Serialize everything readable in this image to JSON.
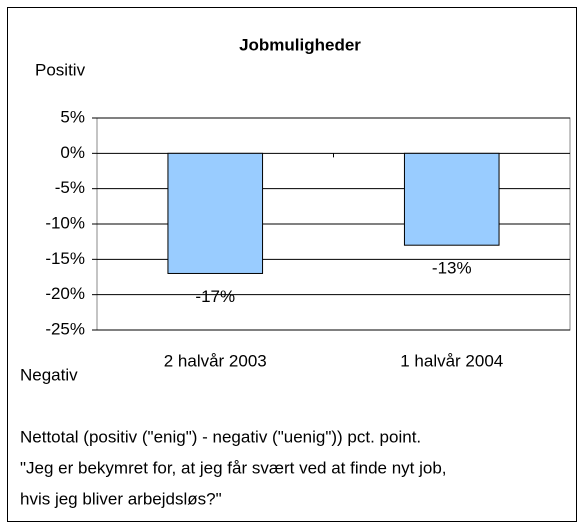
{
  "chart_data": {
    "type": "bar",
    "title": "Jobmuligheder",
    "top_label": "Positiv",
    "bottom_label": "Negativ",
    "categories": [
      "2 halvår 2003",
      "1 halvår 2004"
    ],
    "values": [
      -17,
      -13
    ],
    "value_labels": [
      "-17%",
      "-13%"
    ],
    "color": "#99ccff",
    "ylim": [
      -25,
      5
    ],
    "yticks": [
      {
        "value": 5,
        "label": "5%"
      },
      {
        "value": 0,
        "label": "0%"
      },
      {
        "value": -5,
        "label": "-5%"
      },
      {
        "value": -10,
        "label": "-10%"
      },
      {
        "value": -15,
        "label": "-15%"
      },
      {
        "value": -20,
        "label": "-20%"
      },
      {
        "value": -25,
        "label": "-25%"
      }
    ],
    "grid": true,
    "notes": [
      "Nettotal (positiv (\"enig\") - negativ (\"uenig\")) pct. point.",
      "\"Jeg er bekymret for, at jeg får svært ved at finde nyt job,",
      "hvis jeg bliver arbejdsløs?\""
    ]
  }
}
